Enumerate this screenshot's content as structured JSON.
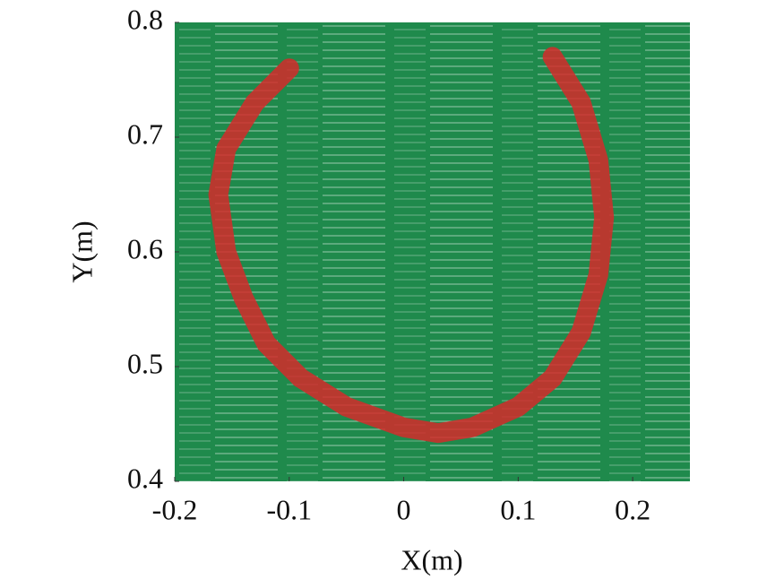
{
  "chart_data": {
    "type": "line",
    "x_label": "X(m)",
    "y_label": "Y(m)",
    "xlim": [
      -0.2,
      0.25
    ],
    "xticks": [
      -0.2,
      -0.1,
      0,
      0.1,
      0.2
    ],
    "ylim": [
      0.4,
      0.8
    ],
    "yticks": [
      0.4,
      0.5,
      0.6,
      0.7,
      0.8
    ],
    "background_color": "#1f8a4c",
    "series": [
      {
        "color": "#d42a2a",
        "x": [
          -0.1,
          -0.13,
          -0.155,
          -0.162,
          -0.155,
          -0.14,
          -0.12,
          -0.09,
          -0.05,
          0,
          0.03,
          0.06,
          0.1,
          0.13,
          0.155,
          0.17,
          0.175,
          0.17,
          0.155,
          0.13
        ],
        "values": [
          0.76,
          0.73,
          0.69,
          0.65,
          0.6,
          0.56,
          0.52,
          0.49,
          0.465,
          0.447,
          0.442,
          0.447,
          0.465,
          0.49,
          0.53,
          0.58,
          0.63,
          0.68,
          0.73,
          0.77
        ]
      }
    ]
  }
}
